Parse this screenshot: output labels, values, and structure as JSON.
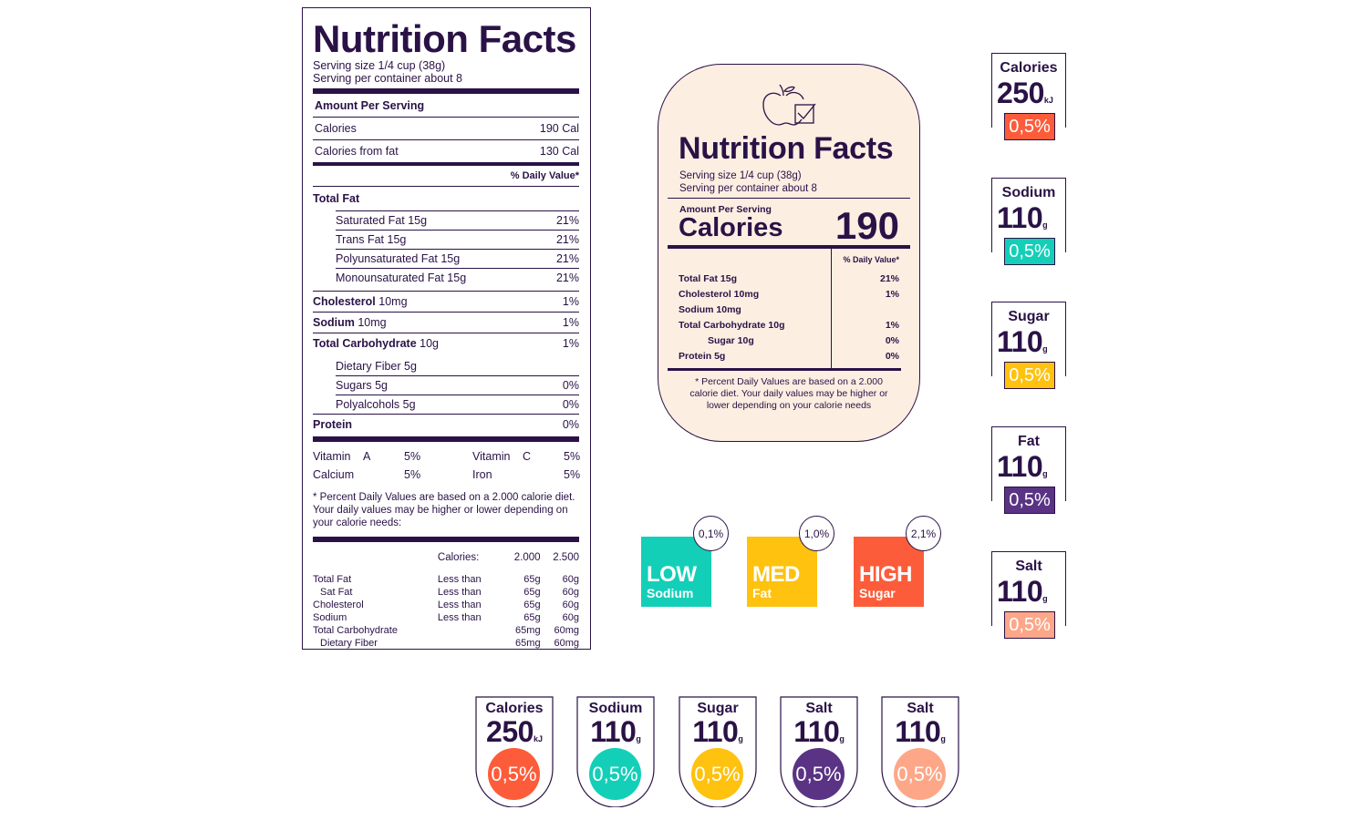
{
  "label_main": {
    "title": "Nutrition Facts",
    "serving_size": "Serving size 1/4 cup (38g)",
    "serving_per_container": "Serving per container about 8",
    "amount_per_serving": "Amount Per Serving",
    "calories_label": "Calories",
    "calories_value": "190 Cal",
    "calories_fat_label": "Calories from fat",
    "calories_fat_value": "130 Cal",
    "daily_value_header": "% Daily Value*",
    "total_fat": "Total Fat",
    "fat_rows": [
      {
        "label": "Saturated Fat 15g",
        "value": "21%"
      },
      {
        "label": "Trans Fat 15g",
        "value": "21%"
      },
      {
        "label": "Polyunsaturated Fat 15g",
        "value": "21%"
      },
      {
        "label": "Monounsaturated Fat 15g",
        "value": "21%"
      }
    ],
    "cholesterol": {
      "label": "Cholesterol",
      "amount": "10mg",
      "value": "1%"
    },
    "sodium": {
      "label": "Sodium",
      "amount": "10mg",
      "value": "1%"
    },
    "carbohydrate": {
      "label": "Total Carbohydrate",
      "amount": "10g",
      "value": "1%"
    },
    "carb_rows": [
      {
        "label": "Dietary Fiber 5g",
        "value": ""
      },
      {
        "label": "Sugars 5g",
        "value": "0%"
      },
      {
        "label": "Polyalcohols 5g",
        "value": "0%"
      }
    ],
    "protein": {
      "label": "Protein",
      "value": "0%"
    },
    "vitamins": [
      {
        "a_label": "Vitamin",
        "a_letter": "A",
        "a_value": "5%",
        "b_label": "Vitamin",
        "b_letter": "C",
        "b_value": "5%"
      },
      {
        "a_label": "Calcium",
        "a_letter": "",
        "a_value": "5%",
        "b_label": "Iron",
        "b_letter": "",
        "b_value": "5%"
      }
    ],
    "footnote": "* Percent Daily Values are based on a 2.000 calorie diet. Your daily values may be higher or lower depending on your calorie needs:",
    "dv_header": {
      "label": "Calories:",
      "c1": "2.000",
      "c2": "2.500"
    },
    "dv_rows": [
      {
        "name": "Total Fat",
        "cond": "Less than",
        "c1": "65g",
        "c2": "60g"
      },
      {
        "name": "Sat Fat",
        "cond": "Less than",
        "c1": "65g",
        "c2": "60g"
      },
      {
        "name": "Cholesterol",
        "cond": "Less than",
        "c1": "65g",
        "c2": "60g"
      },
      {
        "name": "Sodium",
        "cond": "Less than",
        "c1": "65g",
        "c2": "60g"
      },
      {
        "name": "Total Carbohydrate",
        "cond": "",
        "c1": "65mg",
        "c2": "60mg"
      },
      {
        "name": "Dietary Fiber",
        "cond": "",
        "c1": "65mg",
        "c2": "60mg"
      }
    ]
  },
  "label_round": {
    "icon": "apple-check-icon",
    "title": "Nutrition Facts",
    "serving_size": "Serving size 1/4 cup (38g)",
    "serving_per_container": "Serving per container about 8",
    "amount_per_serving": "Amount Per Serving",
    "calories_label": "Calories",
    "calories_value": "190",
    "daily_value_header": "% Daily Value*",
    "rows": [
      {
        "label": "Total Fat 15g",
        "value": "21%",
        "indent": false
      },
      {
        "label": "Cholesterol 10mg",
        "value": "1%",
        "indent": false
      },
      {
        "label": "Sodium 10mg",
        "value": "",
        "indent": false
      },
      {
        "label": "Total Carbohydrate 10g",
        "value": "1%",
        "indent": false
      },
      {
        "label": "Sugar 10g",
        "value": "0%",
        "indent": true
      },
      {
        "label": "Protein 5g",
        "value": "0%",
        "indent": false
      }
    ],
    "footnote": "* Percent Daily Values are based on a 2.000 calorie diet. Your daily values may be higher or lower depending on your calorie needs"
  },
  "badges": [
    {
      "level": "LOW",
      "nutrient": "Sodium",
      "percent": "0,1%",
      "color": "#14cfb8"
    },
    {
      "level": "MED",
      "nutrient": "Fat",
      "percent": "1,0%",
      "color": "#fec20f"
    },
    {
      "level": "HIGH",
      "nutrient": "Sugar",
      "percent": "2,1%",
      "color": "#fd5c3a"
    }
  ],
  "square_tags": [
    {
      "label": "Calories",
      "value": "250",
      "unit": "kJ",
      "percent": "0,5%",
      "color": "#fd5c3a"
    },
    {
      "label": "Sodium",
      "value": "110",
      "unit": "g",
      "percent": "0,5%",
      "color": "#14cfb8"
    },
    {
      "label": "Sugar",
      "value": "110",
      "unit": "g",
      "percent": "0,5%",
      "color": "#fec20f"
    },
    {
      "label": "Fat",
      "value": "110",
      "unit": "g",
      "percent": "0,5%",
      "color": "#5a3384"
    },
    {
      "label": "Salt",
      "value": "110",
      "unit": "g",
      "percent": "0,5%",
      "color": "#fda788"
    }
  ],
  "shield_tags": [
    {
      "label": "Calories",
      "value": "250",
      "unit": "kJ",
      "percent": "0,5%",
      "color": "#fd5c3a"
    },
    {
      "label": "Sodium",
      "value": "110",
      "unit": "g",
      "percent": "0,5%",
      "color": "#14cfb8"
    },
    {
      "label": "Sugar",
      "value": "110",
      "unit": "g",
      "percent": "0,5%",
      "color": "#fec20f"
    },
    {
      "label": "Salt",
      "value": "110",
      "unit": "g",
      "percent": "0,5%",
      "color": "#5a3384"
    },
    {
      "label": "Salt",
      "value": "110",
      "unit": "g",
      "percent": "0,5%",
      "color": "#fda788"
    }
  ]
}
